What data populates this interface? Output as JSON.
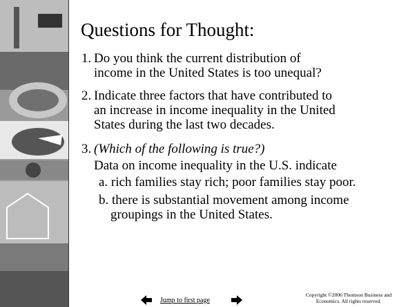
{
  "slide": {
    "title": "Questions for Thought:",
    "questions": [
      {
        "number": "1.",
        "lines": [
          "Do you think the current distribution of",
          "income in the United States is too unequal?"
        ]
      },
      {
        "number": "2.",
        "lines": [
          "Indicate three factors that have contributed to",
          "an increase in income inequality in the United",
          "States during the last two decades."
        ]
      },
      {
        "number": "3.",
        "prompt": "(Which of the following is true?)",
        "stem": "Data on income inequality in the U.S. indicate",
        "options": [
          {
            "lines": [
              "a. rich families stay rich; poor families stay poor."
            ]
          },
          {
            "lines": [
              "b. there is substantial movement among income",
              "groupings in the United States."
            ]
          }
        ]
      }
    ],
    "footer": {
      "link": "Jump to first page",
      "copyright": [
        "Copyright ©2006  Thomson Business and",
        "Economics. All rights reserved."
      ]
    }
  }
}
